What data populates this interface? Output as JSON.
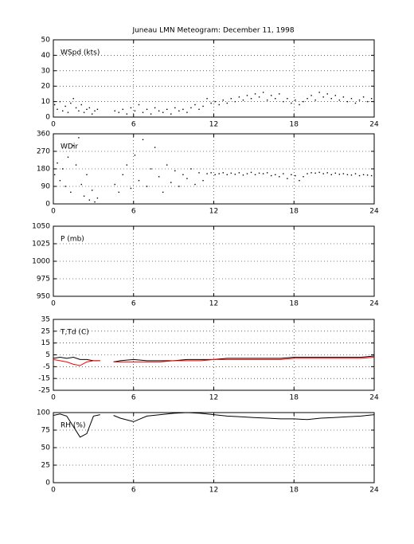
{
  "chart_data": [
    {
      "type": "scatter",
      "title": "Juneau LMN Meteogram:  December 11, 1998",
      "ylabel": "WSpd (kts)",
      "color": "#000000",
      "xlim": [
        0,
        24
      ],
      "xticks": [
        0,
        6,
        12,
        18,
        24
      ],
      "ylim": [
        0,
        50
      ],
      "yticks": [
        0,
        10,
        20,
        30,
        40,
        50
      ],
      "grid": true,
      "x": [
        0.1,
        0.3,
        0.5,
        0.7,
        0.9,
        1.1,
        1.3,
        1.5,
        1.7,
        1.9,
        2.1,
        2.3,
        2.5,
        2.7,
        2.9,
        3.1,
        3.3,
        4.6,
        4.9,
        5.2,
        5.5,
        5.8,
        6.1,
        6.4,
        6.7,
        7.0,
        7.3,
        7.6,
        7.9,
        8.2,
        8.5,
        8.8,
        9.1,
        9.4,
        9.7,
        10.0,
        10.3,
        10.6,
        10.9,
        11.2,
        11.5,
        11.8,
        12.1,
        12.4,
        12.7,
        13.0,
        13.3,
        13.6,
        13.9,
        14.2,
        14.5,
        14.8,
        15.1,
        15.4,
        15.7,
        16.0,
        16.3,
        16.6,
        16.9,
        17.2,
        17.5,
        17.8,
        18.1,
        18.4,
        18.7,
        19.0,
        19.3,
        19.6,
        19.9,
        20.2,
        20.5,
        20.8,
        21.1,
        21.4,
        21.7,
        22.0,
        22.3,
        22.6,
        22.9,
        23.2,
        23.5,
        23.8
      ],
      "values": [
        8,
        5,
        10,
        4,
        7,
        3,
        9,
        12,
        6,
        4,
        8,
        3,
        5,
        6,
        2,
        4,
        5,
        4,
        3,
        5,
        2,
        6,
        4,
        8,
        3,
        5,
        2,
        6,
        4,
        3,
        5,
        2,
        6,
        4,
        5,
        3,
        6,
        8,
        5,
        7,
        12,
        9,
        10,
        8,
        11,
        9,
        12,
        10,
        13,
        11,
        14,
        12,
        15,
        13,
        16,
        11,
        14,
        12,
        15,
        10,
        12,
        9,
        11,
        8,
        10,
        12,
        14,
        11,
        16,
        13,
        15,
        12,
        14,
        11,
        13,
        10,
        12,
        9,
        11,
        13,
        10,
        12
      ]
    },
    {
      "type": "scatter",
      "ylabel": "WDir",
      "color": "#000000",
      "xlim": [
        0,
        24
      ],
      "xticks": [
        0,
        6,
        12,
        18,
        24
      ],
      "ylim": [
        0,
        360
      ],
      "yticks": [
        0,
        90,
        180,
        270,
        360
      ],
      "grid": true,
      "x": [
        0.1,
        0.3,
        0.5,
        0.7,
        0.9,
        1.1,
        1.3,
        1.5,
        1.7,
        1.9,
        2.1,
        2.3,
        2.5,
        2.7,
        2.9,
        3.1,
        3.3,
        4.6,
        4.9,
        5.2,
        5.5,
        5.8,
        6.1,
        6.4,
        6.7,
        7.0,
        7.3,
        7.6,
        7.9,
        8.2,
        8.5,
        8.8,
        9.1,
        9.4,
        9.7,
        10.0,
        10.3,
        10.6,
        10.9,
        11.2,
        11.5,
        11.8,
        12.1,
        12.4,
        12.7,
        13.0,
        13.3,
        13.6,
        13.9,
        14.2,
        14.5,
        14.8,
        15.1,
        15.4,
        15.7,
        16.0,
        16.3,
        16.6,
        16.9,
        17.2,
        17.5,
        17.8,
        18.1,
        18.4,
        18.7,
        19.0,
        19.3,
        19.6,
        19.9,
        20.2,
        20.5,
        20.8,
        21.1,
        21.4,
        21.7,
        22.0,
        22.3,
        22.6,
        22.9,
        23.2,
        23.5,
        23.8
      ],
      "values": [
        150,
        210,
        120,
        180,
        90,
        240,
        60,
        300,
        200,
        340,
        100,
        40,
        150,
        20,
        70,
        10,
        30,
        100,
        60,
        150,
        200,
        80,
        250,
        120,
        330,
        90,
        180,
        290,
        140,
        60,
        200,
        110,
        170,
        90,
        150,
        130,
        180,
        100,
        160,
        120,
        155,
        160,
        150,
        155,
        160,
        150,
        158,
        152,
        160,
        148,
        155,
        162,
        150,
        158,
        155,
        160,
        145,
        150,
        140,
        155,
        130,
        150,
        145,
        120,
        140,
        155,
        160,
        158,
        162,
        155,
        160,
        150,
        158,
        152,
        155,
        150,
        148,
        155,
        145,
        150,
        148,
        145
      ]
    },
    {
      "type": "line",
      "ylabel": "P (mb)",
      "xlim": [
        0,
        24
      ],
      "xticks": [
        0,
        6,
        12,
        18,
        24
      ],
      "ylim": [
        950,
        1050
      ],
      "yticks": [
        950,
        975,
        1000,
        1025,
        1050
      ],
      "grid": true
    },
    {
      "type": "line",
      "ylabel": "T,Td (C)",
      "xlim": [
        0,
        24
      ],
      "xticks": [
        0,
        6,
        12,
        18,
        24
      ],
      "ylim": [
        -25,
        35
      ],
      "yticks": [
        -25,
        -15,
        -5,
        5,
        15,
        25,
        35
      ],
      "grid": true,
      "x": [
        0,
        0.5,
        1,
        1.5,
        2,
        2.5,
        3,
        3.5,
        4,
        4.5,
        5,
        6,
        7,
        8,
        9,
        10,
        11,
        12,
        13,
        14,
        15,
        16,
        17,
        18,
        19,
        20,
        21,
        22,
        23,
        24
      ],
      "series": [
        {
          "color": "#000000",
          "values": [
            2,
            3,
            2,
            3,
            1,
            1,
            0,
            0,
            null,
            -1,
            0,
            1,
            0,
            0,
            0,
            1,
            1,
            1,
            2,
            2,
            2,
            2,
            2,
            3,
            3,
            3,
            3,
            3,
            3,
            4
          ]
        },
        {
          "color": "#ff0000",
          "values": [
            1,
            0,
            -1,
            -3,
            -4,
            -1,
            0,
            0,
            null,
            -1,
            -1,
            -1,
            -1,
            -1,
            0,
            0,
            0,
            1,
            1,
            1,
            1,
            1,
            1,
            2,
            2,
            2,
            2,
            2,
            2,
            3
          ]
        }
      ]
    },
    {
      "type": "line",
      "ylabel": "RH (%)",
      "xlim": [
        0,
        24
      ],
      "xticks": [
        0,
        6,
        12,
        18,
        24
      ],
      "ylim": [
        0,
        100
      ],
      "yticks": [
        0,
        25,
        50,
        75,
        100
      ],
      "grid": true,
      "x": [
        0,
        0.5,
        1,
        1.5,
        2,
        2.5,
        3,
        3.5,
        4,
        4.5,
        5,
        6,
        7,
        8,
        9,
        10,
        11,
        12,
        13,
        14,
        15,
        16,
        17,
        18,
        19,
        20,
        21,
        22,
        23,
        24
      ],
      "series": [
        {
          "color": "#000000",
          "values": [
            96,
            98,
            95,
            80,
            65,
            70,
            95,
            97,
            null,
            96,
            92,
            87,
            95,
            97,
            99,
            100,
            99,
            97,
            95,
            94,
            93,
            92,
            91,
            91,
            90,
            92,
            93,
            94,
            95,
            97
          ]
        }
      ]
    }
  ]
}
